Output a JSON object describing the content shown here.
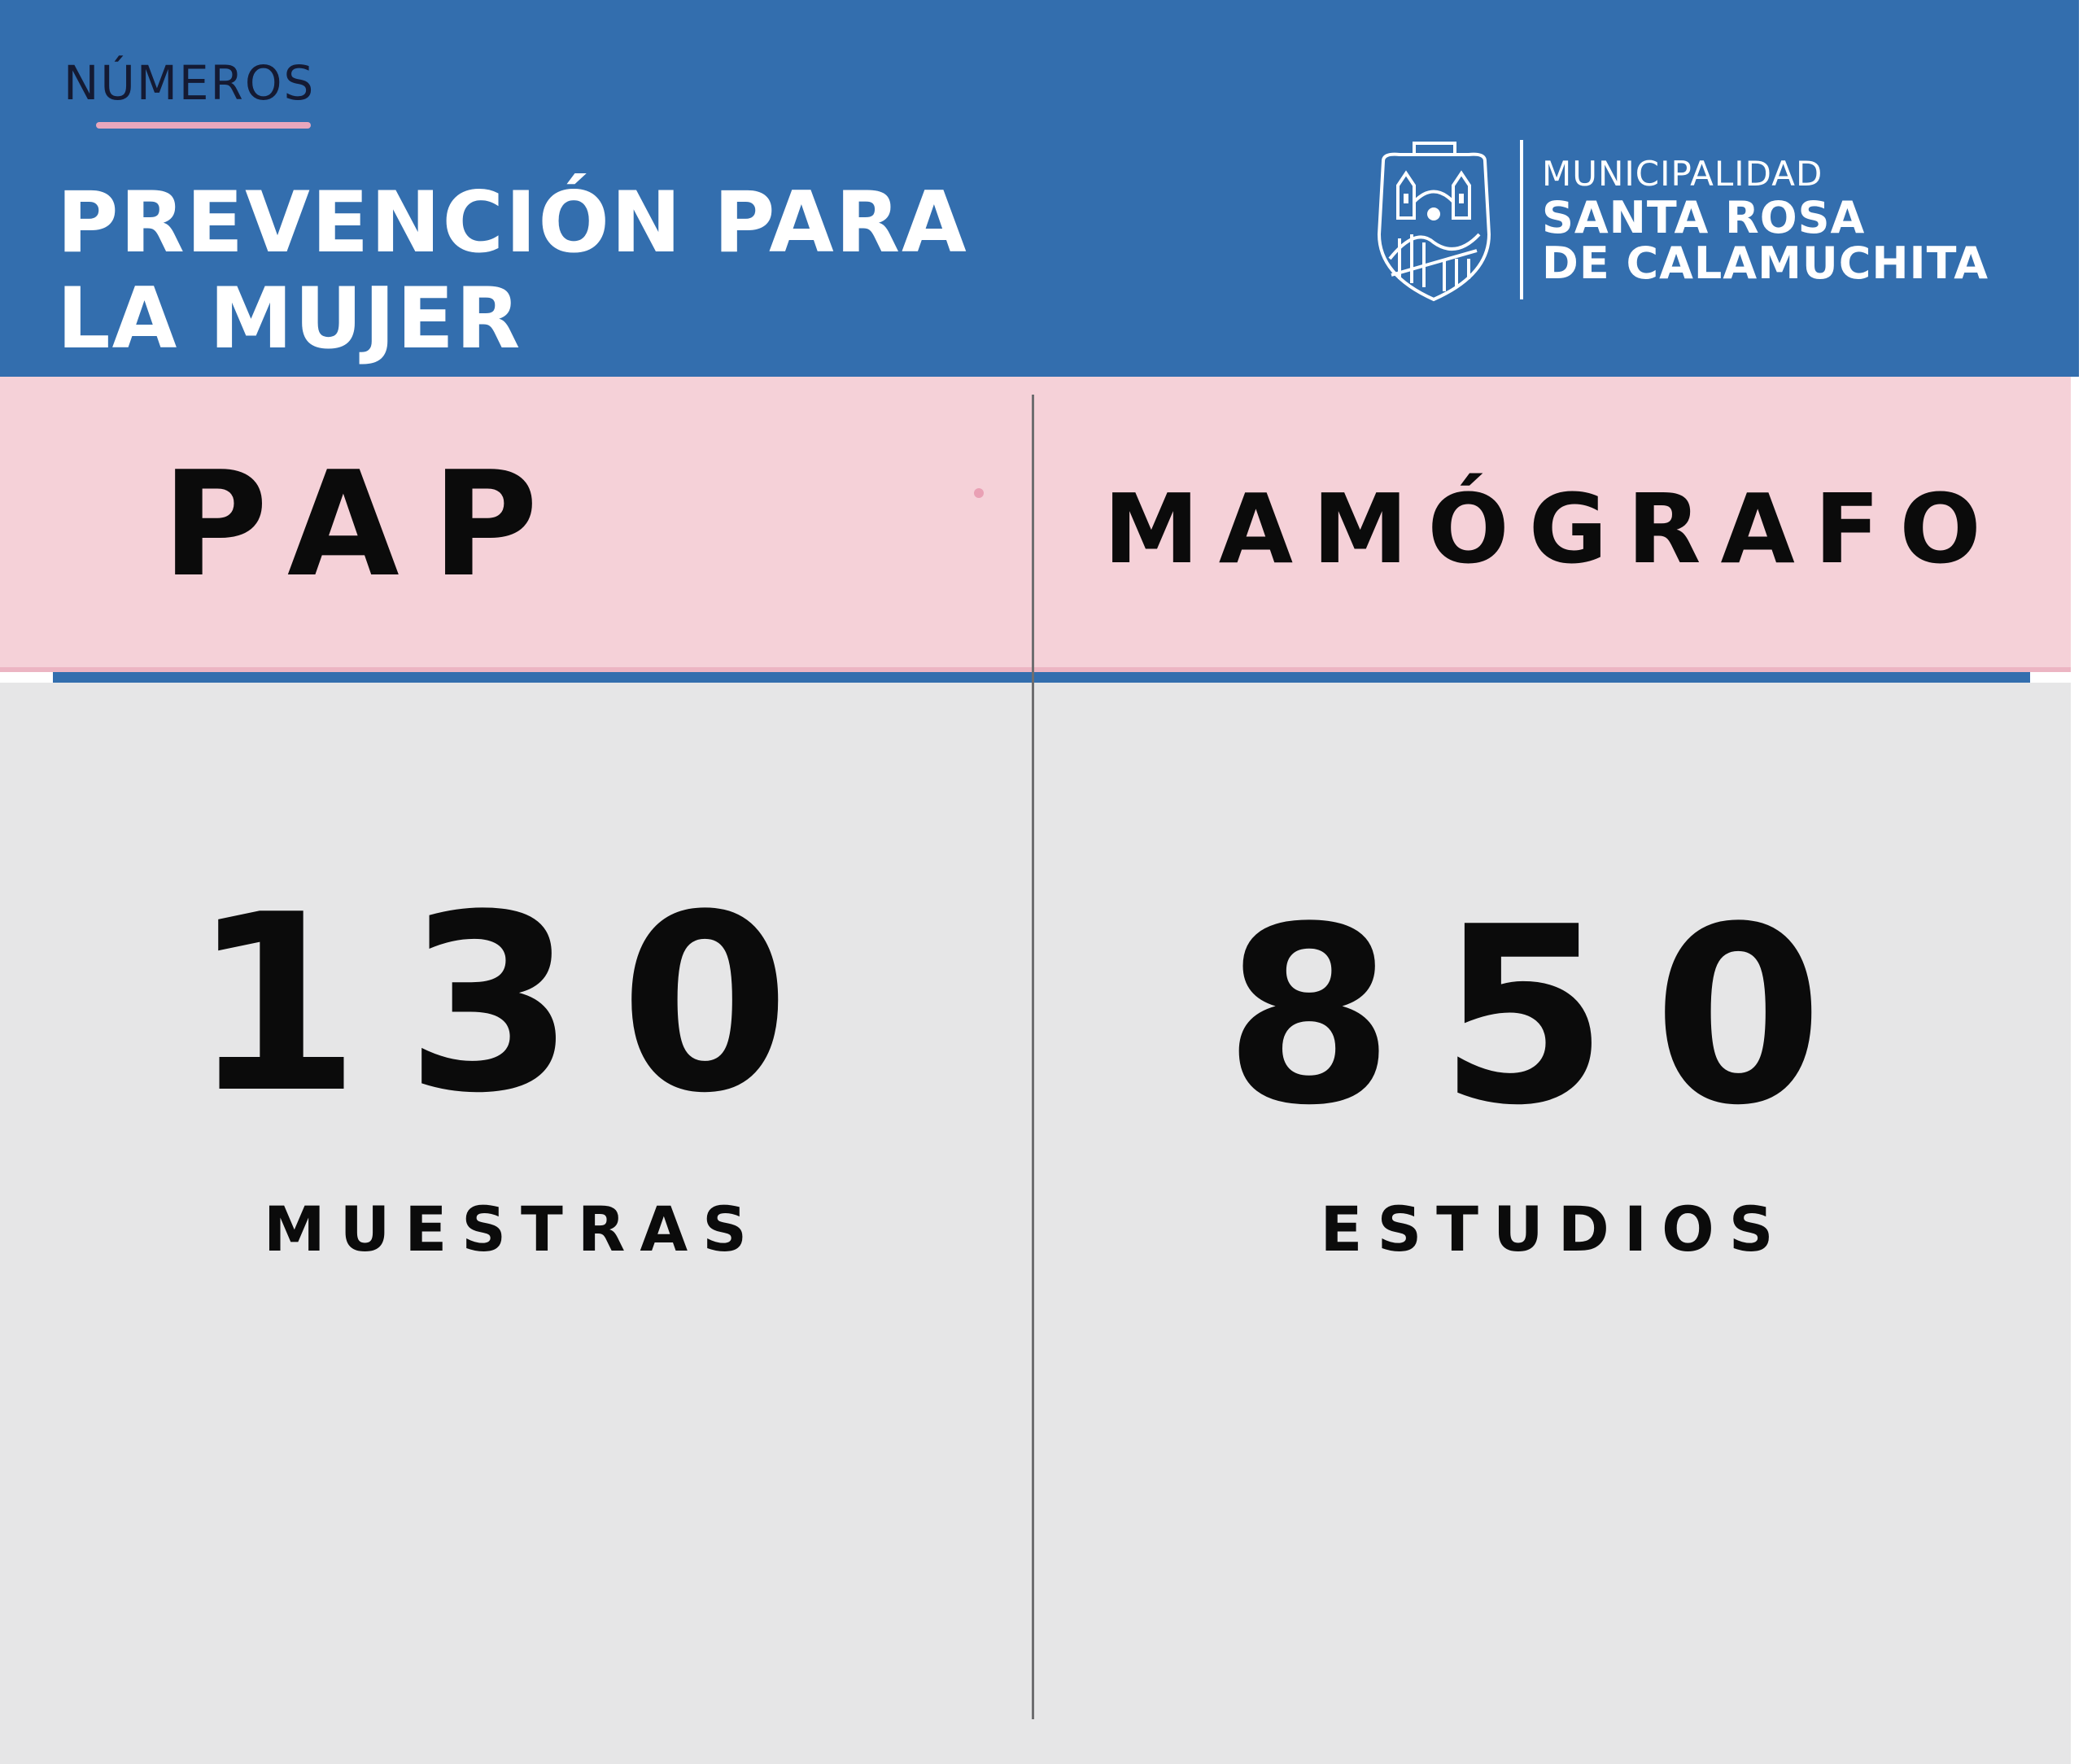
{
  "header": {
    "kicker": "NÚMEROS",
    "title_line1": "PREVENCIÓN PARA",
    "title_line2": "LA MUJER",
    "background_color": "#336eae",
    "accent_color": "#e9a7bd"
  },
  "logo": {
    "emblem_name": "santa-rosa-coat-of-arms",
    "emblem_text_top": "SANTA ROSA",
    "emblem_text_bottom": "CALAMUCHITA",
    "line1": "MUNICIPALIDAD",
    "line2": "SANTA ROSA",
    "line3": "DE CALAMUCHITA"
  },
  "columns": [
    {
      "heading": "PAP",
      "value": "130",
      "caption": "MUESTRAS"
    },
    {
      "heading": "MAMÓGRAFO",
      "value": "850",
      "caption": "ESTUDIOS"
    }
  ],
  "colors": {
    "band_pink": "#f5d1d8",
    "panel_grey": "#e6e6e7",
    "text_dark": "#0b0b0b"
  }
}
